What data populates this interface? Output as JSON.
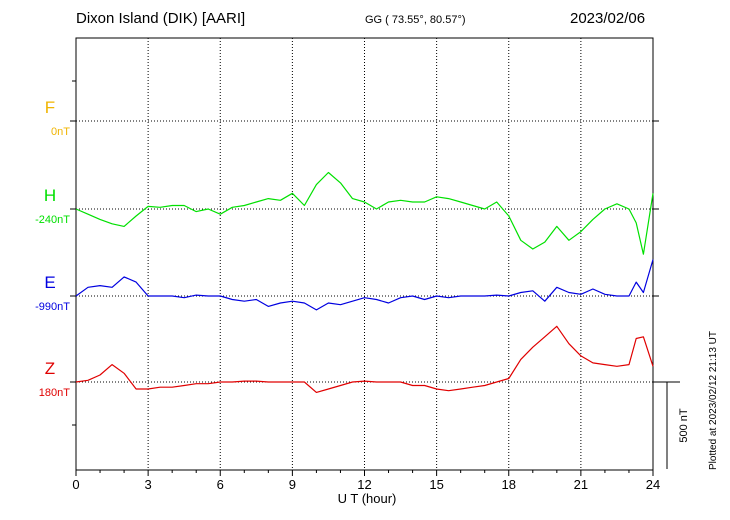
{
  "header": {
    "station": "Dixon Island (DIK)  [AARI]",
    "coords": "GG ( 73.55°,  80.57°)",
    "date": "2023/02/06"
  },
  "footer": {
    "plotted": "Plotted at 2023/02/12 21:13 UT"
  },
  "chart_data": {
    "type": "line",
    "xlabel": "U T (hour)",
    "xlim": [
      0,
      24
    ],
    "xticks": [
      "0",
      "3",
      "6",
      "9",
      "12",
      "15",
      "18",
      "21",
      "24"
    ],
    "scale_bar": {
      "label": "500 nT",
      "value_nT": 500
    },
    "channels": [
      {
        "name": "F",
        "baseline": "0nT",
        "color": "#f0b400",
        "x": [],
        "values": []
      },
      {
        "name": "H",
        "baseline": "-240nT",
        "color": "#00e000",
        "x": [
          0,
          0.5,
          1,
          1.5,
          2,
          2.5,
          3,
          3.5,
          4,
          4.5,
          5,
          5.5,
          6,
          6.5,
          7,
          7.5,
          8,
          8.5,
          9,
          9.5,
          10,
          10.5,
          11,
          11.5,
          12,
          12.5,
          13,
          13.5,
          14,
          14.5,
          15,
          15.5,
          16,
          16.5,
          17,
          17.5,
          18,
          18.5,
          19,
          19.5,
          20,
          20.5,
          21,
          21.5,
          22,
          22.5,
          23,
          23.3,
          23.6,
          24
        ],
        "values": [
          0,
          -30,
          -60,
          -85,
          -100,
          -40,
          15,
          10,
          20,
          20,
          -15,
          0,
          -30,
          10,
          20,
          40,
          60,
          50,
          90,
          20,
          140,
          210,
          150,
          60,
          40,
          0,
          40,
          50,
          40,
          40,
          70,
          60,
          40,
          20,
          0,
          40,
          -40,
          -180,
          -230,
          -190,
          -100,
          -180,
          -130,
          -60,
          0,
          30,
          0,
          -80,
          -260,
          90
        ]
      },
      {
        "name": "E",
        "baseline": "-990nT",
        "color": "#0000e0",
        "x": [
          0,
          0.5,
          1,
          1.5,
          2,
          2.5,
          3,
          3.5,
          4,
          4.5,
          5,
          5.5,
          6,
          6.5,
          7,
          7.5,
          8,
          8.5,
          9,
          9.5,
          10,
          10.5,
          11,
          11.5,
          12,
          12.5,
          13,
          13.5,
          14,
          14.5,
          15,
          15.5,
          16,
          16.5,
          17,
          17.5,
          18,
          18.5,
          19,
          19.5,
          20,
          20.5,
          21,
          21.5,
          22,
          22.5,
          23,
          23.3,
          23.6,
          24
        ],
        "values": [
          0,
          50,
          60,
          50,
          110,
          80,
          0,
          0,
          0,
          -10,
          5,
          0,
          0,
          -20,
          -30,
          -20,
          -60,
          -40,
          -30,
          -40,
          -80,
          -40,
          -50,
          -30,
          -10,
          -20,
          -40,
          -10,
          0,
          -20,
          0,
          -10,
          0,
          0,
          0,
          5,
          0,
          20,
          30,
          -30,
          50,
          20,
          10,
          40,
          10,
          0,
          0,
          80,
          20,
          210
        ]
      },
      {
        "name": "Z",
        "baseline": "180nT",
        "color": "#e00000",
        "x": [
          0,
          0.5,
          1,
          1.5,
          2,
          2.5,
          3,
          3.5,
          4,
          4.5,
          5,
          5.5,
          6,
          6.5,
          7,
          7.5,
          8,
          8.5,
          9,
          9.5,
          10,
          10.5,
          11,
          11.5,
          12,
          12.5,
          13,
          13.5,
          14,
          14.5,
          15,
          15.5,
          16,
          16.5,
          17,
          17.5,
          18,
          18.5,
          19,
          19.5,
          20,
          20.5,
          21,
          21.5,
          22,
          22.5,
          23,
          23.3,
          23.6,
          24
        ],
        "values": [
          0,
          10,
          40,
          100,
          50,
          -40,
          -40,
          -30,
          -30,
          -20,
          -10,
          -10,
          0,
          0,
          5,
          5,
          0,
          0,
          0,
          0,
          -60,
          -40,
          -20,
          0,
          5,
          0,
          0,
          0,
          -20,
          -20,
          -40,
          -50,
          -40,
          -30,
          -20,
          0,
          20,
          130,
          200,
          260,
          320,
          220,
          150,
          110,
          100,
          90,
          100,
          250,
          260,
          90
        ]
      }
    ]
  }
}
